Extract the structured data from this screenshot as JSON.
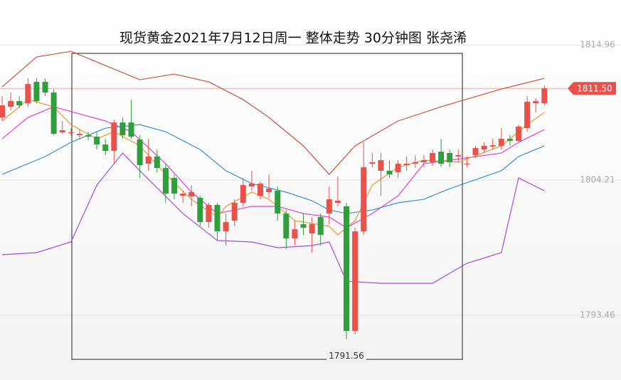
{
  "chart_data": {
    "type": "candlestick",
    "title": "现货黄金2021年7月12日周一 整体走势 30分钟图 张尧浠",
    "ylim": [
      1788.31,
      1818.53
    ],
    "yticks": [
      1814.96,
      1804.21,
      1793.46
    ],
    "grid": true,
    "up_color": "#e8524a",
    "down_color": "#2f9e3c",
    "open": [
      1809.19,
      1810.04,
      1810.49,
      1810.32,
      1812.02,
      1812.02,
      1811.17,
      1808.0,
      1808.0,
      1807.78,
      1807.78,
      1807.66,
      1807.04,
      1806.53,
      1808.79,
      1808.79,
      1807.44,
      1805.51,
      1806.08,
      1805.17,
      1804.38,
      1802.96,
      1802.91,
      1802.8,
      1800.87,
      1802.23,
      1800.13,
      1800.98,
      1802.4,
      1803.7,
      1802.96,
      1803.25,
      1803.36,
      1801.55,
      1799.57,
      1800.7,
      1799.97,
      1801.27,
      1801.55,
      1802.4,
      1802.12,
      1792.21,
      1800.13,
      1805.51,
      1804.95,
      1804.95,
      1804.83,
      1805.4,
      1805.51,
      1805.63,
      1805.63,
      1806.47,
      1806.36,
      1806.08,
      1805.51,
      1806.19,
      1806.64,
      1806.87,
      1806.93,
      1807.49,
      1807.32,
      1808.34,
      1810.32,
      1810.32
    ],
    "high": [
      1810.89,
      1811.17,
      1810.89,
      1812.3,
      1812.3,
      1812.3,
      1811.45,
      1808.91,
      1808.34,
      1808.23,
      1808.06,
      1808.06,
      1807.49,
      1809.02,
      1809.19,
      1810.61,
      1807.78,
      1807.49,
      1806.64,
      1805.51,
      1804.66,
      1803.36,
      1803.81,
      1802.96,
      1802.4,
      1802.4,
      1801.55,
      1802.68,
      1804.38,
      1804.95,
      1804.1,
      1804.66,
      1803.7,
      1801.83,
      1800.98,
      1801.55,
      1801.27,
      1801.55,
      1803.7,
      1804.49,
      1802.4,
      1800.42,
      1807.21,
      1806.36,
      1806.36,
      1805.79,
      1805.79,
      1806.08,
      1806.19,
      1806.19,
      1806.64,
      1807.49,
      1806.64,
      1806.64,
      1806.08,
      1806.93,
      1807.21,
      1807.49,
      1808.34,
      1807.78,
      1808.62,
      1810.89,
      1810.72,
      1811.74
    ],
    "low": [
      1808.91,
      1809.76,
      1809.93,
      1810.04,
      1810.32,
      1810.89,
      1807.78,
      1807.89,
      1807.78,
      1807.49,
      1807.38,
      1806.64,
      1806.19,
      1805.51,
      1807.49,
      1807.49,
      1804.38,
      1804.95,
      1804.83,
      1802.4,
      1802.68,
      1802.4,
      1802.12,
      1800.53,
      1800.42,
      1799.4,
      1799.0,
      1800.53,
      1802.12,
      1803.36,
      1802.68,
      1802.8,
      1800.98,
      1798.72,
      1799.0,
      1799.85,
      1798.44,
      1799.0,
      1800.7,
      1802.12,
      1791.56,
      1791.93,
      1799.85,
      1805.23,
      1802.96,
      1804.38,
      1804.38,
      1804.95,
      1805.17,
      1805.23,
      1805.34,
      1805.23,
      1805.23,
      1805.63,
      1805.23,
      1805.96,
      1806.36,
      1806.64,
      1806.64,
      1806.93,
      1807.21,
      1808.06,
      1809.59,
      1810.15
    ],
    "close": [
      1810.15,
      1810.49,
      1810.15,
      1811.85,
      1810.49,
      1811.17,
      1807.89,
      1808.17,
      1808.0,
      1807.89,
      1807.66,
      1807.04,
      1806.53,
      1808.79,
      1807.78,
      1807.66,
      1805.4,
      1806.08,
      1805.17,
      1803.13,
      1803.13,
      1803.13,
      1803.25,
      1800.87,
      1802.23,
      1800.13,
      1800.87,
      1802.4,
      1803.81,
      1803.93,
      1803.93,
      1803.53,
      1801.55,
      1799.57,
      1800.3,
      1800.42,
      1800.7,
      1799.85,
      1802.68,
      1802.57,
      1792.21,
      1800.13,
      1805.23,
      1805.63,
      1805.79,
      1804.66,
      1805.51,
      1805.51,
      1805.63,
      1805.79,
      1806.36,
      1805.51,
      1805.63,
      1806.19,
      1805.51,
      1806.76,
      1806.93,
      1806.98,
      1807.49,
      1807.32,
      1808.46,
      1810.44,
      1810.49,
      1811.5
    ],
    "lines": [
      {
        "color": "#c8553a",
        "x": [
          0,
          4,
          8,
          12,
          16,
          20,
          24,
          28,
          31,
          35,
          38,
          41,
          46,
          51,
          58,
          63
        ],
        "values": [
          1811.62,
          1814.0,
          1814.45,
          1813.32,
          1812.19,
          1812.64,
          1812.02,
          1810.61,
          1809.19,
          1806.93,
          1804.66,
          1806.93,
          1808.91,
          1810.04,
          1811.45,
          1812.3
        ]
      },
      {
        "color": "#e43fd8",
        "x": [
          0,
          3,
          6,
          9,
          12,
          15,
          19,
          22,
          25,
          29,
          32,
          35,
          38,
          40,
          43,
          46,
          49,
          52,
          58,
          60,
          63
        ],
        "values": [
          1807.49,
          1809.19,
          1810.04,
          1809.47,
          1808.91,
          1808.06,
          1805.51,
          1803.25,
          1801.55,
          1802.12,
          1802.12,
          1801.55,
          1801.27,
          1800.42,
          1801.55,
          1802.96,
          1805.51,
          1805.79,
          1806.36,
          1807.21,
          1808.23
        ]
      },
      {
        "color": "#a64de0",
        "x": [
          0,
          4,
          8,
          11,
          14,
          16,
          21,
          25,
          29,
          32,
          36,
          38,
          40,
          44,
          50,
          54,
          58,
          60,
          63
        ],
        "values": [
          1798.27,
          1798.44,
          1799.29,
          1803.81,
          1806.36,
          1804.95,
          1801.55,
          1799.4,
          1799.29,
          1798.83,
          1799.0,
          1799.29,
          1796.17,
          1796.0,
          1796.0,
          1797.59,
          1798.44,
          1804.38,
          1803.36
        ]
      },
      {
        "color": "#3a8fd6",
        "x": [
          0,
          5,
          8,
          12,
          16,
          19,
          23,
          26,
          29,
          33,
          36,
          38,
          40,
          43,
          46,
          49,
          52,
          58,
          60,
          63
        ],
        "values": [
          1804.66,
          1806.08,
          1807.21,
          1808.34,
          1808.62,
          1808.06,
          1806.64,
          1804.95,
          1803.93,
          1803.25,
          1802.57,
          1801.83,
          1801.55,
          1801.83,
          1802.4,
          1802.68,
          1803.53,
          1804.95,
          1806.08,
          1806.93
        ]
      },
      {
        "color": "#f0962a",
        "x": [
          0,
          3,
          6,
          8,
          11,
          13,
          16,
          19,
          22,
          25,
          26,
          29,
          31,
          34,
          38,
          39,
          41,
          43,
          46,
          49,
          53,
          58,
          61,
          63
        ],
        "values": [
          1808.91,
          1810.61,
          1810.04,
          1808.62,
          1807.49,
          1808.06,
          1806.93,
          1804.66,
          1802.68,
          1801.27,
          1802.12,
          1803.25,
          1802.68,
          1800.98,
          1800.53,
          1799.85,
          1800.98,
          1803.81,
          1805.23,
          1805.79,
          1805.63,
          1806.93,
          1808.62,
          1809.59
        ]
      }
    ],
    "price_tag": {
      "value": 1811.5,
      "label": "1811.50"
    }
  }
}
